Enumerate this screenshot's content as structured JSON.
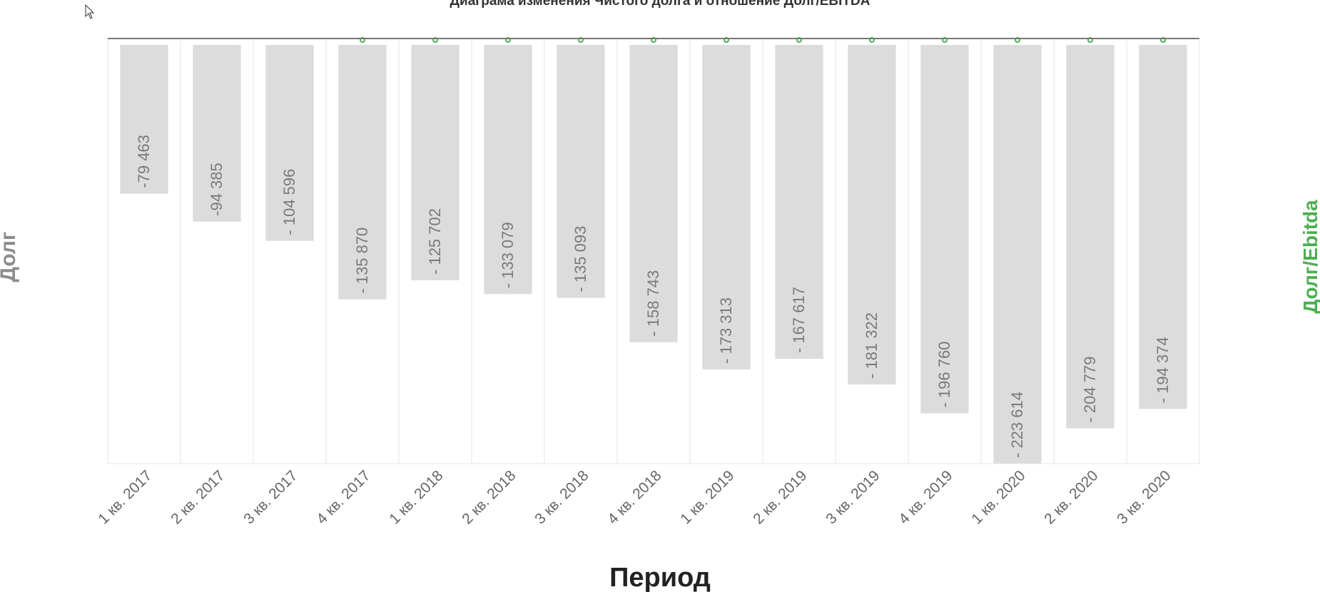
{
  "chart_data": {
    "type": "bar",
    "title": "Диаграма изменения Чистого долга и отношение Долг/EBITDA",
    "xlabel": "Период",
    "ylabel": "Долг",
    "ylabel_right": "Долг/Ebitda",
    "categories": [
      "1 кв. 2017",
      "2 кв. 2017",
      "3 кв. 2017",
      "4 кв. 2017",
      "1 кв. 2018",
      "2 кв. 2018",
      "3 кв. 2018",
      "4 кв. 2018",
      "1 кв. 2019",
      "2 кв. 2019",
      "3 кв. 2019",
      "4 кв. 2019",
      "1 кв. 2020",
      "2 кв. 2020",
      "3 кв. 2020"
    ],
    "values": [
      -79463,
      -94385,
      -104596,
      -135870,
      -125702,
      -133079,
      -135093,
      -158743,
      -173313,
      -167617,
      -181322,
      -196760,
      -223614,
      -204779,
      -194374
    ],
    "value_labels": [
      "-79 463",
      "-94 385",
      "- 104 596",
      "- 135 870",
      "- 125 702",
      "- 133 079",
      "- 135 093",
      "- 158 743",
      "- 173 313",
      "- 167 617",
      "- 181 322",
      "- 196 760",
      "- 223 614",
      "- 204 779",
      "- 194 374"
    ],
    "ylim": [
      -223614,
      0
    ],
    "grid": true,
    "colors": {
      "bar": "#dcdcdc",
      "bar_label": "#7a7a7a",
      "grid": "#e6e6e6",
      "zero_line": "#777777",
      "ratio_marker": "#4caf50",
      "ylabel_right": "#4caf50"
    }
  }
}
